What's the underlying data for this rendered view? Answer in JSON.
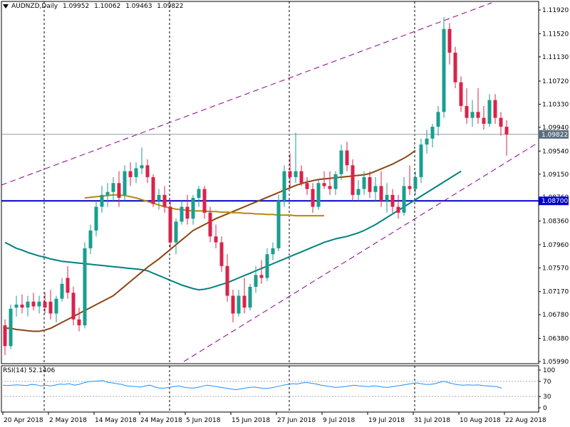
{
  "header": {
    "symbol": "AUDNZD,Daily",
    "open": "1.09952",
    "high": "1.10062",
    "low": "1.09463",
    "close": "1.09822"
  },
  "rsi": {
    "label": "RSI(14) 52.1406",
    "levels": [
      "100",
      "70",
      "30",
      "0"
    ],
    "values": [
      60,
      59,
      60,
      61,
      60,
      59,
      62,
      61,
      58,
      60,
      58,
      60,
      63,
      62,
      64,
      60,
      62,
      66,
      69,
      70,
      71,
      72,
      68,
      66,
      64,
      62,
      58,
      57,
      56,
      55,
      58,
      60,
      55,
      52,
      52,
      54,
      56,
      58,
      55,
      53,
      52,
      54,
      57,
      60,
      58,
      56,
      54,
      52,
      50,
      48,
      50,
      52,
      54,
      55,
      53,
      51,
      52,
      54,
      57,
      60,
      62,
      64,
      63,
      66,
      67,
      65,
      63,
      60,
      58,
      56,
      54,
      55,
      56,
      58,
      60,
      58,
      57,
      56,
      58,
      57,
      55,
      54,
      56,
      58,
      60,
      62,
      64,
      66,
      64,
      62,
      62,
      64,
      68,
      70,
      66,
      63,
      61,
      60,
      61,
      60,
      61,
      59,
      58,
      57,
      56,
      52
    ]
  },
  "chart_data": {
    "type": "candlestick",
    "symbol": "AUDNZD",
    "timeframe": "Daily",
    "ylim": [
      1.059,
      1.121
    ],
    "y_ticks": [
      "1.11920",
      "1.11520",
      "1.11130",
      "1.10720",
      "1.10330",
      "1.09940",
      "1.09540",
      "1.09150",
      "1.08760",
      "1.08360",
      "1.07960",
      "1.07570",
      "1.07170",
      "1.06780",
      "1.06380",
      "1.05990"
    ],
    "x_ticks": [
      {
        "label": "20 Apr 2018",
        "bar": 0
      },
      {
        "label": "2 May 2018",
        "bar": 8
      },
      {
        "label": "14 May 2018",
        "bar": 16
      },
      {
        "label": "24 May 2018",
        "bar": 24
      },
      {
        "label": "5 Jun 2018",
        "bar": 32
      },
      {
        "label": "15 Jun 2018",
        "bar": 40
      },
      {
        "label": "27 Jun 2018",
        "bar": 48
      },
      {
        "label": "9 Jul 2018",
        "bar": 56
      },
      {
        "label": "19 Jul 2018",
        "bar": 64
      },
      {
        "label": "31 Jul 2018",
        "bar": 72
      },
      {
        "label": "10 Aug 2018",
        "bar": 80
      },
      {
        "label": "22 Aug 2018",
        "bar": 88
      }
    ],
    "period_separators": [
      7,
      29,
      50,
      72
    ],
    "current_price": "1.09822",
    "horizontal_level": "1.08700",
    "candles": [
      [
        1.066,
        1.067,
        1.061,
        1.0625
      ],
      [
        1.0625,
        1.0695,
        1.062,
        1.0688
      ],
      [
        1.069,
        1.071,
        1.0675,
        1.0695
      ],
      [
        1.0695,
        1.0712,
        1.068,
        1.069
      ],
      [
        1.069,
        1.071,
        1.0675,
        1.07
      ],
      [
        1.07,
        1.0715,
        1.0685,
        1.0692
      ],
      [
        1.0692,
        1.071,
        1.068,
        1.07
      ],
      [
        1.07,
        1.0715,
        1.068,
        1.069
      ],
      [
        1.07,
        1.072,
        1.067,
        1.068
      ],
      [
        1.068,
        1.071,
        1.0665,
        1.0705
      ],
      [
        1.0705,
        1.074,
        1.07,
        1.073
      ],
      [
        1.074,
        1.076,
        1.0705,
        1.0715
      ],
      [
        1.0715,
        1.0725,
        1.066,
        1.067
      ],
      [
        1.067,
        1.069,
        1.065,
        1.066
      ],
      [
        1.066,
        1.08,
        1.0655,
        1.079
      ],
      [
        1.079,
        1.083,
        1.078,
        1.082
      ],
      [
        1.082,
        1.087,
        1.081,
        1.086
      ],
      [
        1.086,
        1.0895,
        1.085,
        1.088
      ],
      [
        1.088,
        1.09,
        1.086,
        1.0885
      ],
      [
        1.0885,
        1.091,
        1.087,
        1.09
      ],
      [
        1.09,
        1.092,
        1.086,
        1.0875
      ],
      [
        1.088,
        1.093,
        1.087,
        1.092
      ],
      [
        1.092,
        1.0935,
        1.0895,
        1.091
      ],
      [
        1.091,
        1.0935,
        1.09,
        1.0925
      ],
      [
        1.0925,
        1.096,
        1.0915,
        1.093
      ],
      [
        1.093,
        1.094,
        1.09,
        1.091
      ],
      [
        1.091,
        1.0915,
        1.086,
        1.0865
      ],
      [
        1.087,
        1.089,
        1.0855,
        1.088
      ],
      [
        1.088,
        1.0895,
        1.085,
        1.086
      ],
      [
        1.086,
        1.087,
        1.079,
        1.08
      ],
      [
        1.08,
        1.084,
        1.078,
        1.0835
      ],
      [
        1.0835,
        1.087,
        1.083,
        1.086
      ],
      [
        1.086,
        1.088,
        1.083,
        1.084
      ],
      [
        1.084,
        1.088,
        1.083,
        1.0875
      ],
      [
        1.0875,
        1.0895,
        1.086,
        1.089
      ],
      [
        1.089,
        1.0895,
        1.084,
        1.085
      ],
      [
        1.085,
        1.086,
        1.08,
        1.081
      ],
      [
        1.081,
        1.083,
        1.079,
        1.08
      ],
      [
        1.08,
        1.081,
        1.075,
        1.076
      ],
      [
        1.076,
        1.078,
        1.07,
        1.071
      ],
      [
        1.071,
        1.072,
        1.0665,
        1.068
      ],
      [
        1.068,
        1.072,
        1.0675,
        1.071
      ],
      [
        1.071,
        1.074,
        1.068,
        1.069
      ],
      [
        1.069,
        1.073,
        1.0685,
        1.0725
      ],
      [
        1.0725,
        1.076,
        1.0715,
        1.0745
      ],
      [
        1.0745,
        1.077,
        1.073,
        1.074
      ],
      [
        1.074,
        1.079,
        1.0735,
        1.078
      ],
      [
        1.078,
        1.08,
        1.077,
        1.079
      ],
      [
        1.079,
        1.088,
        1.0785,
        1.087
      ],
      [
        1.087,
        1.093,
        1.086,
        1.092
      ],
      [
        1.092,
        1.095,
        1.089,
        1.091
      ],
      [
        1.091,
        1.0985,
        1.09,
        1.092
      ],
      [
        1.092,
        1.093,
        1.0895,
        1.09
      ],
      [
        1.09,
        1.091,
        1.088,
        1.089
      ],
      [
        1.089,
        1.09,
        1.085,
        1.086
      ],
      [
        1.086,
        1.0905,
        1.0855,
        1.09
      ],
      [
        1.09,
        1.092,
        1.089,
        1.0895
      ],
      [
        1.0895,
        1.092,
        1.088,
        1.089
      ],
      [
        1.089,
        1.092,
        1.088,
        1.0915
      ],
      [
        1.0915,
        1.0965,
        1.0905,
        1.0955
      ],
      [
        1.0955,
        1.097,
        1.092,
        1.093
      ],
      [
        1.093,
        1.094,
        1.087,
        1.088
      ],
      [
        1.088,
        1.0905,
        1.087,
        1.089
      ],
      [
        1.089,
        1.092,
        1.088,
        1.091
      ],
      [
        1.091,
        1.092,
        1.0875,
        1.0885
      ],
      [
        1.0885,
        1.091,
        1.087,
        1.0895
      ],
      [
        1.0895,
        1.092,
        1.086,
        1.087
      ],
      [
        1.087,
        1.09,
        1.085,
        1.088
      ],
      [
        1.088,
        1.089,
        1.085,
        1.086
      ],
      [
        1.086,
        1.088,
        1.084,
        1.085
      ],
      [
        1.085,
        1.091,
        1.0845,
        1.0895
      ],
      [
        1.0895,
        1.093,
        1.088,
        1.089
      ],
      [
        1.089,
        1.092,
        1.088,
        1.091
      ],
      [
        1.091,
        1.0975,
        1.09,
        1.0965
      ],
      [
        1.0965,
        1.099,
        1.095,
        1.0975
      ],
      [
        1.0975,
        1.1,
        1.096,
        1.0995
      ],
      [
        1.0995,
        1.103,
        1.098,
        1.102
      ],
      [
        1.102,
        1.118,
        1.101,
        1.116
      ],
      [
        1.116,
        1.117,
        1.11,
        1.112
      ],
      [
        1.112,
        1.113,
        1.106,
        1.107
      ],
      [
        1.107,
        1.108,
        1.102,
        1.103
      ],
      [
        1.103,
        1.106,
        1.1,
        1.101
      ],
      [
        1.101,
        1.104,
        1.0995,
        1.102
      ],
      [
        1.102,
        1.106,
        1.1,
        1.101
      ],
      [
        1.101,
        1.103,
        1.099,
        1.1
      ],
      [
        1.1,
        1.105,
        1.0995,
        1.104
      ],
      [
        1.104,
        1.105,
        1.1,
        1.101
      ],
      [
        1.101,
        1.102,
        1.098,
        1.0995
      ],
      [
        1.0995,
        1.1006,
        1.0946,
        1.0982
      ]
    ],
    "ma_brown_fast": [
      1.0655,
      1.0655,
      1.0653,
      1.0652,
      1.0651,
      1.065,
      1.065,
      1.0652,
      1.0655,
      1.066,
      1.0665,
      1.067,
      1.0675,
      1.068,
      1.0685,
      1.069,
      1.0695,
      1.07,
      1.0705,
      1.071,
      1.0718,
      1.0726,
      1.0734,
      1.0742,
      1.075,
      1.0758,
      1.0765,
      1.0772,
      1.078,
      1.0788,
      1.0796,
      1.0804,
      1.0812,
      1.082,
      1.0825,
      1.083,
      1.0835,
      1.084,
      1.0844,
      1.0848,
      1.0852,
      1.0856,
      1.086,
      1.0864,
      1.0868,
      1.0872,
      1.0876,
      1.088,
      1.0884,
      1.0888,
      1.0892,
      1.0896,
      1.0899,
      1.0902,
      1.0904,
      1.0906,
      1.0907,
      1.0908,
      1.0909,
      1.091,
      1.0911,
      1.0912,
      1.0913,
      1.0914,
      1.0916,
      1.092,
      1.0924,
      1.0928,
      1.0932,
      1.0937,
      1.0942,
      1.0948,
      1.0955
    ],
    "ma_teal": [
      1.08,
      1.0795,
      1.079,
      1.0787,
      1.0783,
      1.078,
      1.0777,
      1.0775,
      1.0772,
      1.077,
      1.0768,
      1.0767,
      1.0766,
      1.0765,
      1.0764,
      1.0763,
      1.0762,
      1.0761,
      1.076,
      1.0759,
      1.0758,
      1.0757,
      1.0756,
      1.0755,
      1.0754,
      1.0752,
      1.0748,
      1.0744,
      1.074,
      1.0736,
      1.0732,
      1.0728,
      1.0725,
      1.0722,
      1.072,
      1.0721,
      1.0723,
      1.0726,
      1.0729,
      1.0732,
      1.0736,
      1.074,
      1.0744,
      1.0748,
      1.0752,
      1.0756,
      1.076,
      1.0764,
      1.0768,
      1.0772,
      1.0776,
      1.078,
      1.0784,
      1.0788,
      1.0792,
      1.0796,
      1.08,
      1.0803,
      1.0806,
      1.0808,
      1.081,
      1.0813,
      1.0816,
      1.082,
      1.0825,
      1.083,
      1.0836,
      1.0842,
      1.0848,
      1.0854,
      1.086,
      1.0866,
      1.0872,
      1.0878,
      1.0884,
      1.089,
      1.0896,
      1.0902,
      1.0908,
      1.0914,
      1.092
    ],
    "ma_gold": [
      1.0875,
      1.0876,
      1.0877,
      1.0878,
      1.0879,
      1.088,
      1.088,
      1.0879,
      1.0877,
      1.0875,
      1.0872,
      1.0869,
      1.0866,
      1.0863,
      1.086,
      1.0858,
      1.0856,
      1.0855,
      1.0854,
      1.0853,
      1.0853,
      1.0853,
      1.0852,
      1.0852,
      1.0851,
      1.0851,
      1.085,
      1.085,
      1.0849,
      1.0849,
      1.0848,
      1.0848,
      1.0847,
      1.0847,
      1.0846,
      1.0846,
      1.0846,
      1.0845,
      1.0845,
      1.0845,
      1.0845,
      1.0845,
      1.0845
    ]
  }
}
